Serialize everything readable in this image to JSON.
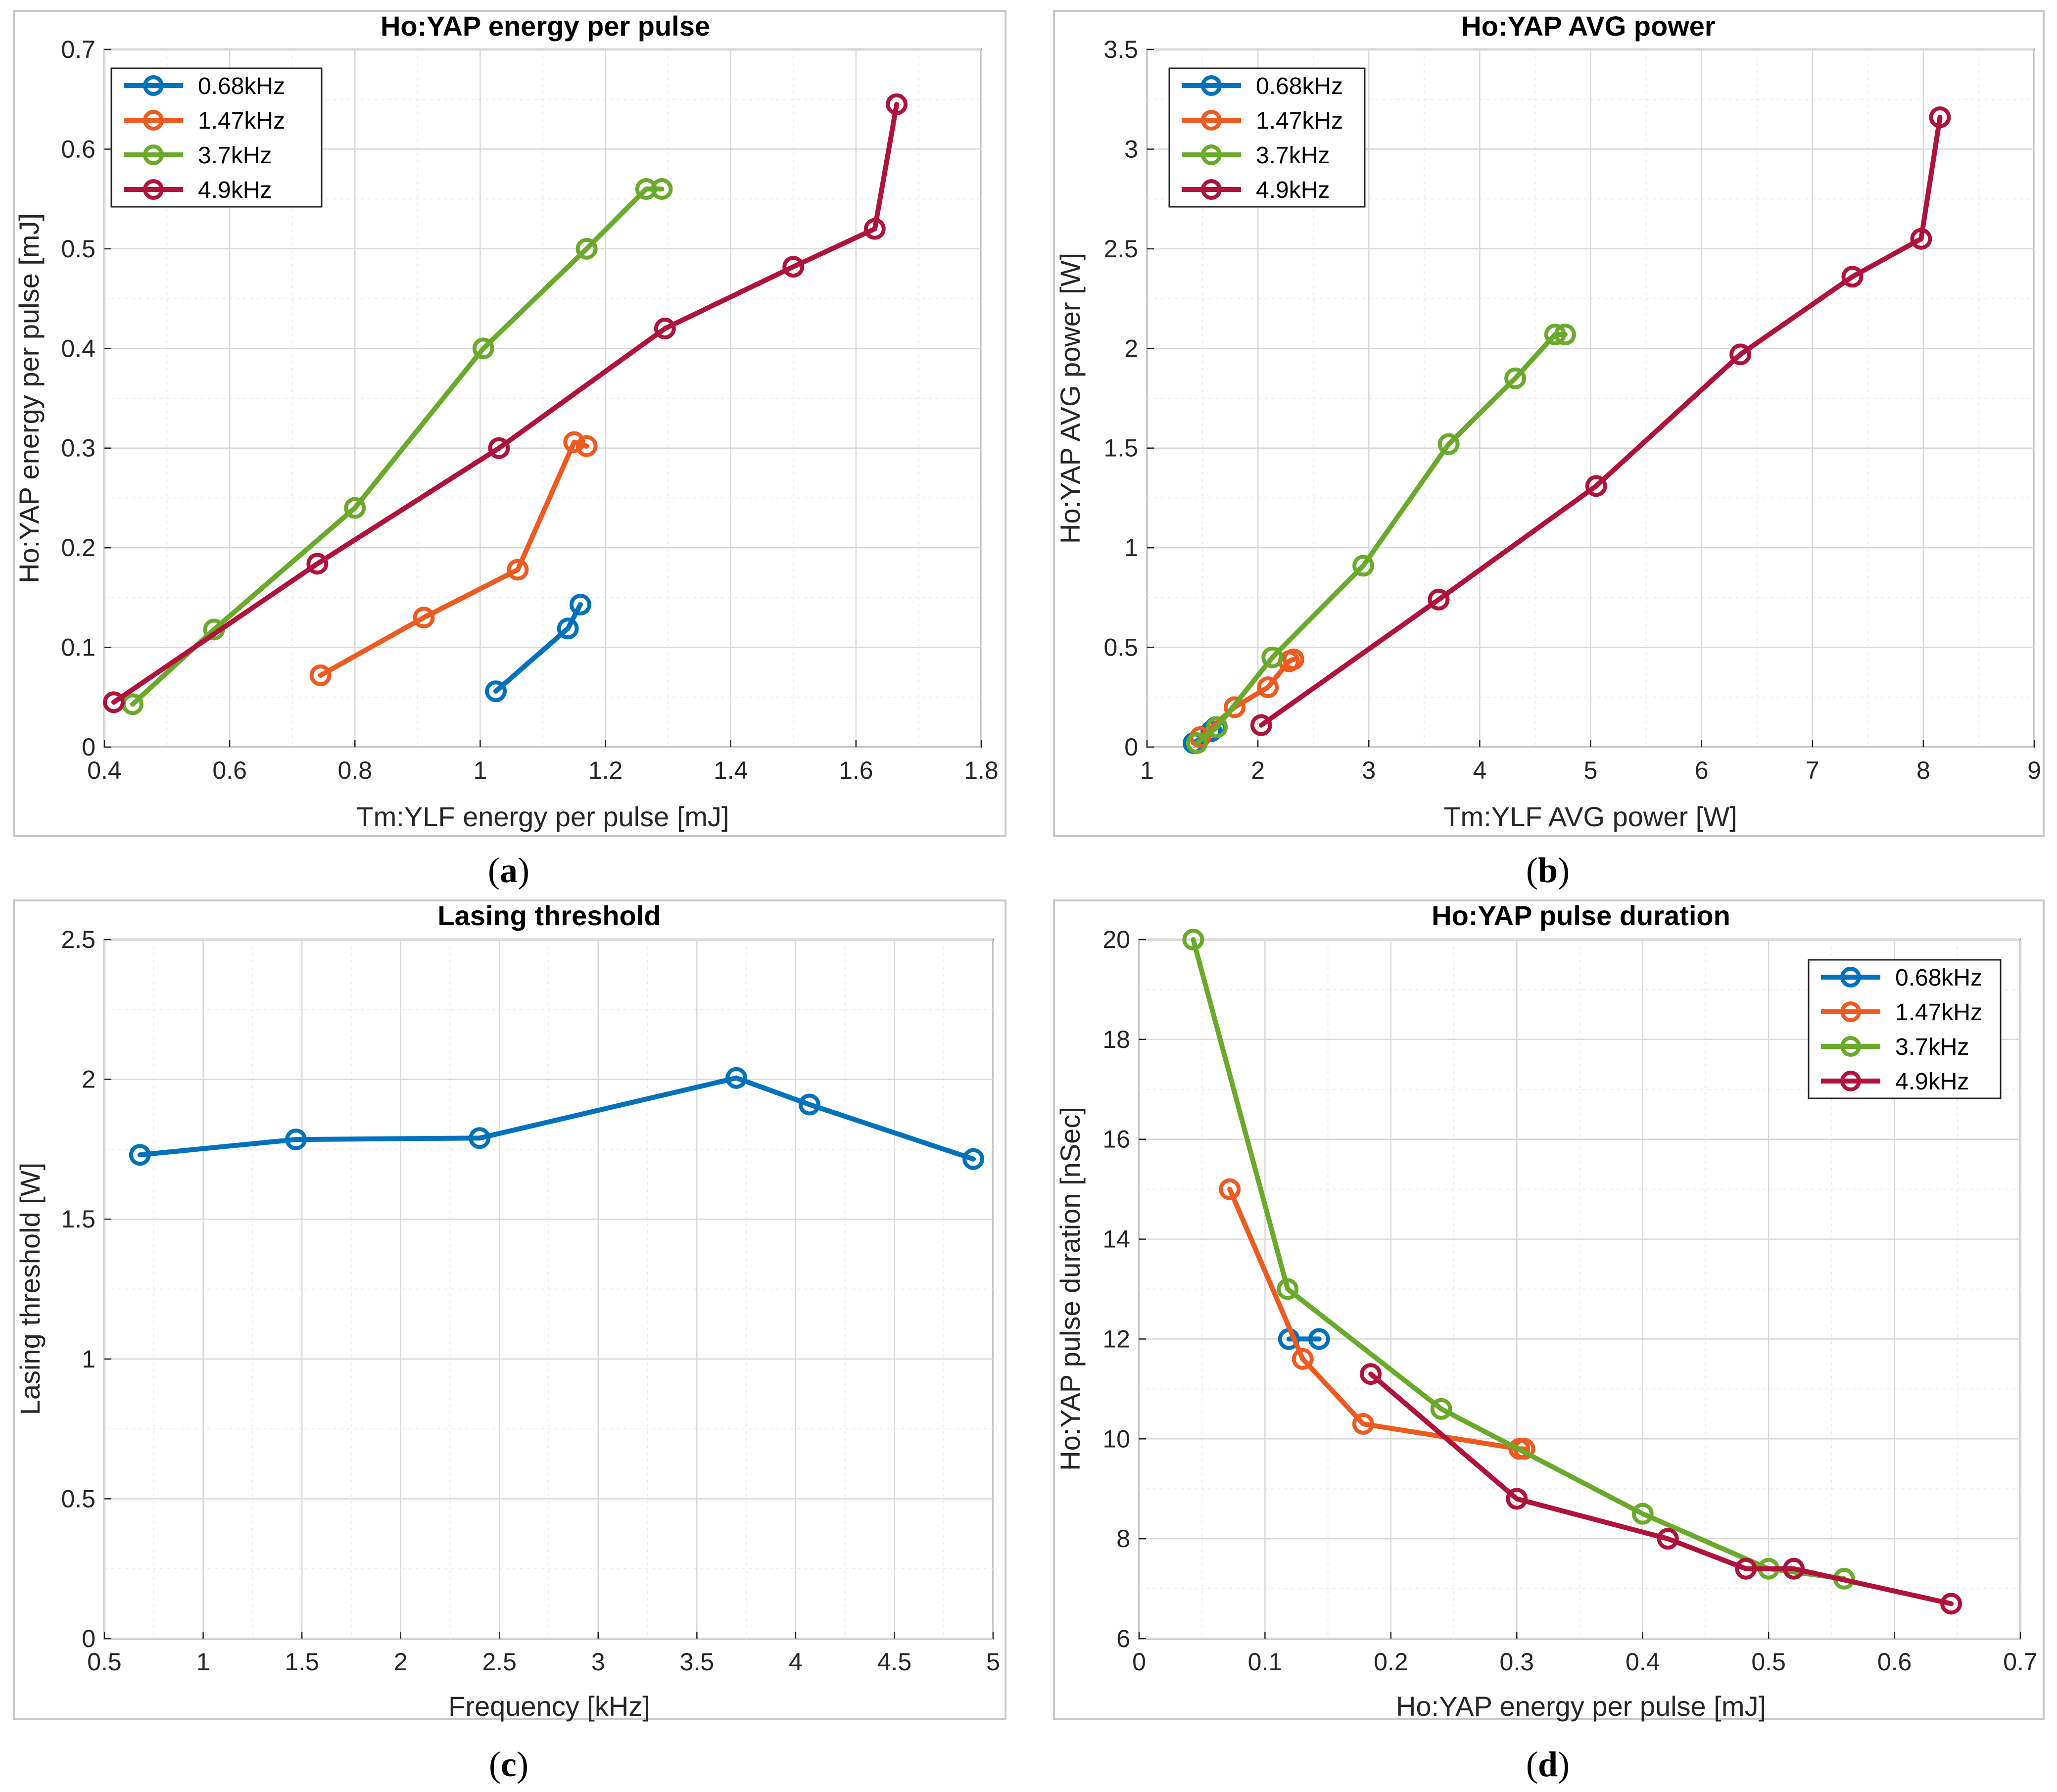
{
  "colors": {
    "s068": "#0072BD",
    "s147": "#EE5A1F",
    "s37": "#6AAA2B",
    "s49": "#B0123B"
  },
  "chart_data": [
    {
      "id": "a",
      "type": "line",
      "title": "Ho:YAP energy per pulse",
      "xlabel": "Tm:YLF energy per pulse [mJ]",
      "ylabel": "Ho:YAP energy per pulse [mJ]",
      "caption_open": "(",
      "caption_letter": "a",
      "caption_close": ")",
      "xlim": [
        0.4,
        1.8
      ],
      "ylim": [
        0,
        0.7
      ],
      "xticks": [
        0.4,
        0.6,
        0.8,
        1,
        1.2,
        1.4,
        1.6,
        1.8
      ],
      "yticks": [
        0,
        0.1,
        0.2,
        0.3,
        0.4,
        0.5,
        0.6,
        0.7
      ],
      "xminor": 0.1,
      "yminor": 0.05,
      "legend_position": "top-left",
      "series": [
        {
          "name": "0.68kHz",
          "color_key": "s068",
          "x": [
            1.025,
            1.14,
            1.16
          ],
          "y": [
            0.056,
            0.119,
            0.143
          ]
        },
        {
          "name": "1.47kHz",
          "color_key": "s147",
          "x": [
            0.745,
            0.91,
            1.06,
            1.15,
            1.17
          ],
          "y": [
            0.072,
            0.13,
            0.178,
            0.306,
            0.302
          ]
        },
        {
          "name": "3.7kHz",
          "color_key": "s37",
          "x": [
            0.445,
            0.575,
            0.8,
            1.005,
            1.17,
            1.265,
            1.29
          ],
          "y": [
            0.043,
            0.118,
            0.24,
            0.4,
            0.5,
            0.56,
            0.56
          ]
        },
        {
          "name": "4.9kHz",
          "color_key": "s49",
          "x": [
            0.415,
            0.74,
            1.03,
            1.295,
            1.5,
            1.63,
            1.665
          ],
          "y": [
            0.045,
            0.184,
            0.3,
            0.42,
            0.482,
            0.52,
            0.645
          ]
        }
      ]
    },
    {
      "id": "b",
      "type": "line",
      "title": "Ho:YAP AVG power",
      "xlabel": "Tm:YLF AVG power [W]",
      "ylabel": "Ho:YAP AVG power [W]",
      "caption_open": "(",
      "caption_letter": "b",
      "caption_close": ")",
      "xlim": [
        1,
        9
      ],
      "ylim": [
        0,
        3.5
      ],
      "xticks": [
        1,
        2,
        3,
        4,
        5,
        6,
        7,
        8,
        9
      ],
      "yticks": [
        0,
        0.5,
        1,
        1.5,
        2,
        2.5,
        3,
        3.5
      ],
      "xminor": 0.5,
      "yminor": 0.25,
      "legend_position": "top-left",
      "series": [
        {
          "name": "0.68kHz",
          "color_key": "s068",
          "x": [
            1.42,
            1.58,
            1.62
          ],
          "y": [
            0.02,
            0.08,
            0.1
          ]
        },
        {
          "name": "1.47kHz",
          "color_key": "s147",
          "x": [
            1.48,
            1.79,
            2.09,
            2.28,
            2.32
          ],
          "y": [
            0.05,
            0.2,
            0.3,
            0.43,
            0.44
          ]
        },
        {
          "name": "3.7kHz",
          "color_key": "s37",
          "x": [
            1.45,
            1.63,
            2.13,
            2.95,
            3.72,
            4.32,
            4.68,
            4.77
          ],
          "y": [
            0.02,
            0.1,
            0.45,
            0.91,
            1.52,
            1.85,
            2.07,
            2.07
          ]
        },
        {
          "name": "4.9kHz",
          "color_key": "s49",
          "x": [
            2.03,
            3.63,
            5.05,
            6.35,
            7.36,
            7.98,
            8.15
          ],
          "y": [
            0.11,
            0.74,
            1.31,
            1.97,
            2.36,
            2.55,
            3.16
          ]
        }
      ]
    },
    {
      "id": "c",
      "type": "line",
      "title": "Lasing threshold",
      "xlabel": "Frequency [kHz]",
      "ylabel": "Lasing threshold [W]",
      "caption_open": "(",
      "caption_letter": "c",
      "caption_close": ")",
      "xlim": [
        0.5,
        5
      ],
      "ylim": [
        0,
        2.5
      ],
      "xticks": [
        0.5,
        1,
        1.5,
        2,
        2.5,
        3,
        3.5,
        4,
        4.5,
        5
      ],
      "yticks": [
        0,
        0.5,
        1,
        1.5,
        2,
        2.5
      ],
      "xminor": 0.25,
      "yminor": 0.25,
      "legend_position": "none",
      "series": [
        {
          "name": "Lasing threshold",
          "color_key": "s068",
          "x": [
            0.68,
            1.47,
            2.4,
            3.7,
            4.07,
            4.9
          ],
          "y": [
            1.73,
            1.785,
            1.79,
            2.005,
            1.91,
            1.715
          ]
        }
      ]
    },
    {
      "id": "d",
      "type": "line",
      "title": "Ho:YAP pulse duration",
      "xlabel": "Ho:YAP energy per pulse [mJ]",
      "ylabel": "Ho:YAP pulse duration [nSec]",
      "caption_open": "(",
      "caption_letter": "d",
      "caption_close": ")",
      "xlim": [
        0,
        0.7
      ],
      "ylim": [
        6,
        20
      ],
      "xticks": [
        0,
        0.1,
        0.2,
        0.3,
        0.4,
        0.5,
        0.6,
        0.7
      ],
      "yticks": [
        6,
        8,
        10,
        12,
        14,
        16,
        18,
        20
      ],
      "xminor": 0.05,
      "yminor": 1,
      "legend_position": "top-right",
      "series": [
        {
          "name": "0.68kHz",
          "color_key": "s068",
          "x": [
            0.119,
            0.143
          ],
          "y": [
            12,
            12
          ]
        },
        {
          "name": "1.47kHz",
          "color_key": "s147",
          "x": [
            0.072,
            0.13,
            0.178,
            0.302,
            0.306
          ],
          "y": [
            15,
            11.6,
            10.3,
            9.8,
            9.8
          ]
        },
        {
          "name": "3.7kHz",
          "color_key": "s37",
          "x": [
            0.043,
            0.118,
            0.24,
            0.4,
            0.5,
            0.56
          ],
          "y": [
            20,
            13,
            10.6,
            8.5,
            7.4,
            7.2
          ]
        },
        {
          "name": "4.9kHz",
          "color_key": "s49",
          "x": [
            0.184,
            0.3,
            0.42,
            0.482,
            0.52,
            0.645
          ],
          "y": [
            11.3,
            8.8,
            8,
            7.4,
            7.4,
            6.7
          ]
        }
      ]
    }
  ]
}
